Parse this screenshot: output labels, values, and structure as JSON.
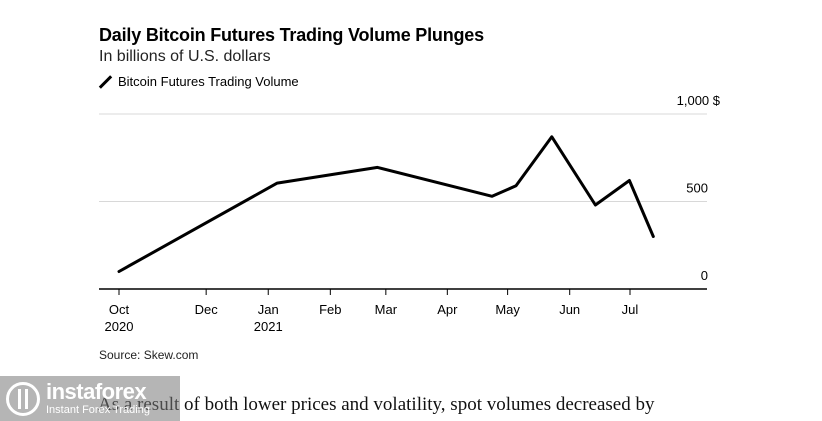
{
  "chart_data": {
    "type": "line",
    "title": "Daily Bitcoin Futures Trading Volume Plunges",
    "subtitle": "In billions of U.S. dollars",
    "legend": "Bitcoin Futures Trading Volume",
    "series": [
      {
        "name": "Bitcoin Futures Trading Volume",
        "points": [
          {
            "x": 0,
            "y": 100
          },
          {
            "x": 2.65,
            "y": 605
          },
          {
            "x": 4.33,
            "y": 695
          },
          {
            "x": 6.25,
            "y": 530
          },
          {
            "x": 6.65,
            "y": 590
          },
          {
            "x": 7.25,
            "y": 870
          },
          {
            "x": 7.98,
            "y": 480
          },
          {
            "x": 8.55,
            "y": 620
          },
          {
            "x": 8.95,
            "y": 300
          }
        ]
      }
    ],
    "x_ticks": [
      {
        "x": 0,
        "label": "Oct",
        "sublabel": "2020"
      },
      {
        "x": 1.46,
        "label": "Dec",
        "sublabel": ""
      },
      {
        "x": 2.5,
        "label": "Jan",
        "sublabel": "2021"
      },
      {
        "x": 3.54,
        "label": "Feb",
        "sublabel": ""
      },
      {
        "x": 4.47,
        "label": "Mar",
        "sublabel": ""
      },
      {
        "x": 5.5,
        "label": "Apr",
        "sublabel": ""
      },
      {
        "x": 6.51,
        "label": "May",
        "sublabel": ""
      },
      {
        "x": 7.55,
        "label": "Jun",
        "sublabel": ""
      },
      {
        "x": 8.56,
        "label": "Jul",
        "sublabel": ""
      }
    ],
    "y_ticks": [
      {
        "y": 0,
        "label": "0"
      },
      {
        "y": 500,
        "label": "500"
      },
      {
        "y": 1000,
        "label": "1,000 $"
      }
    ],
    "xlim": [
      0,
      9.85
    ],
    "ylim": [
      0,
      1000
    ],
    "grid": true
  },
  "source": "Source: Skew.com",
  "body_text": "As a result of both lower prices and volatility, spot volumes decreased by",
  "watermark": {
    "brand": "instaforex",
    "tagline": "Instant Forex Trading"
  },
  "colors": {
    "line": "#000000",
    "grid": "#d8d8d8",
    "axis": "#000000"
  }
}
